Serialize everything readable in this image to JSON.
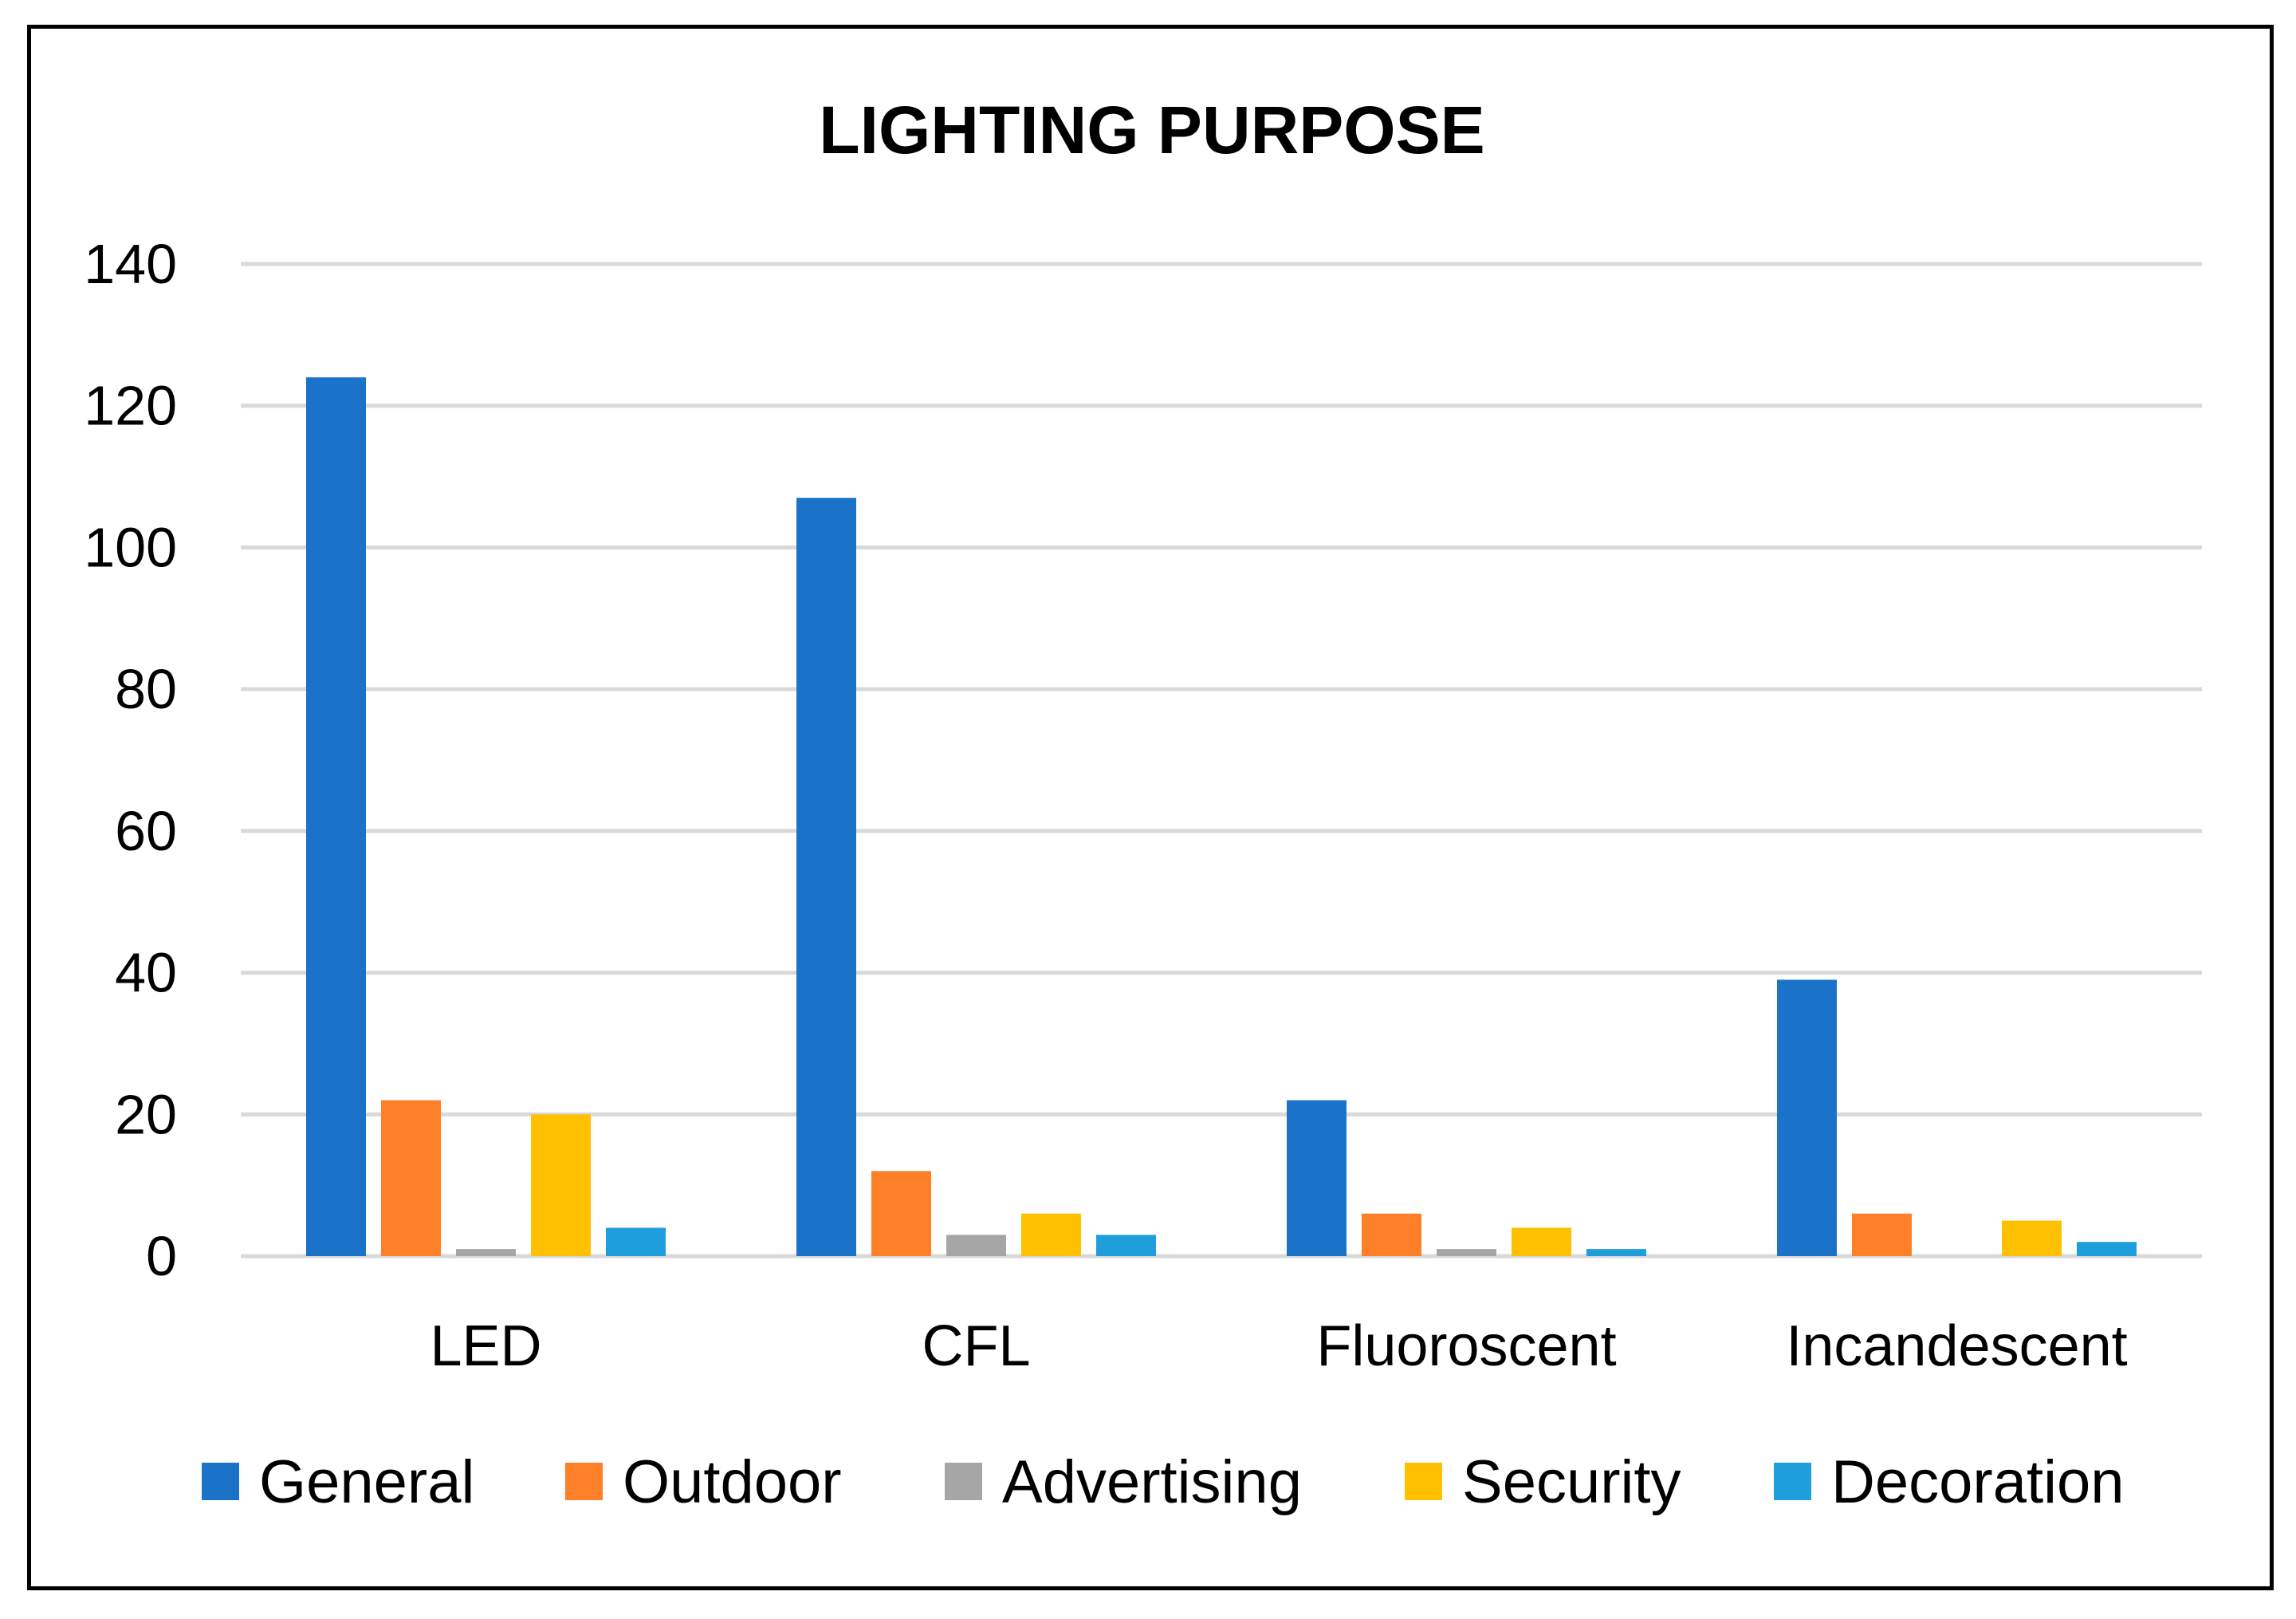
{
  "chart_data": {
    "type": "bar",
    "title": "LIGHTING PURPOSE",
    "xlabel": "",
    "ylabel": "",
    "ylim": [
      0,
      140
    ],
    "yticks": [
      0,
      20,
      40,
      60,
      80,
      100,
      120,
      140
    ],
    "grid": true,
    "legend_position": "bottom",
    "categories": [
      "LED",
      "CFL",
      "Fluoroscent",
      "Incandescent"
    ],
    "series": [
      {
        "name": "General",
        "color": "#1A73C9",
        "values": [
          124,
          107,
          22,
          39
        ]
      },
      {
        "name": "Outdoor",
        "color": "#FD7F27",
        "values": [
          22,
          12,
          6,
          6
        ]
      },
      {
        "name": "Advertising",
        "color": "#A6A6A6",
        "values": [
          1,
          3,
          1,
          0
        ]
      },
      {
        "name": "Security",
        "color": "#FFC000",
        "values": [
          20,
          6,
          4,
          5
        ]
      },
      {
        "name": "Decoration",
        "color": "#1E9EDB",
        "values": [
          4,
          3,
          1,
          2
        ]
      }
    ]
  }
}
